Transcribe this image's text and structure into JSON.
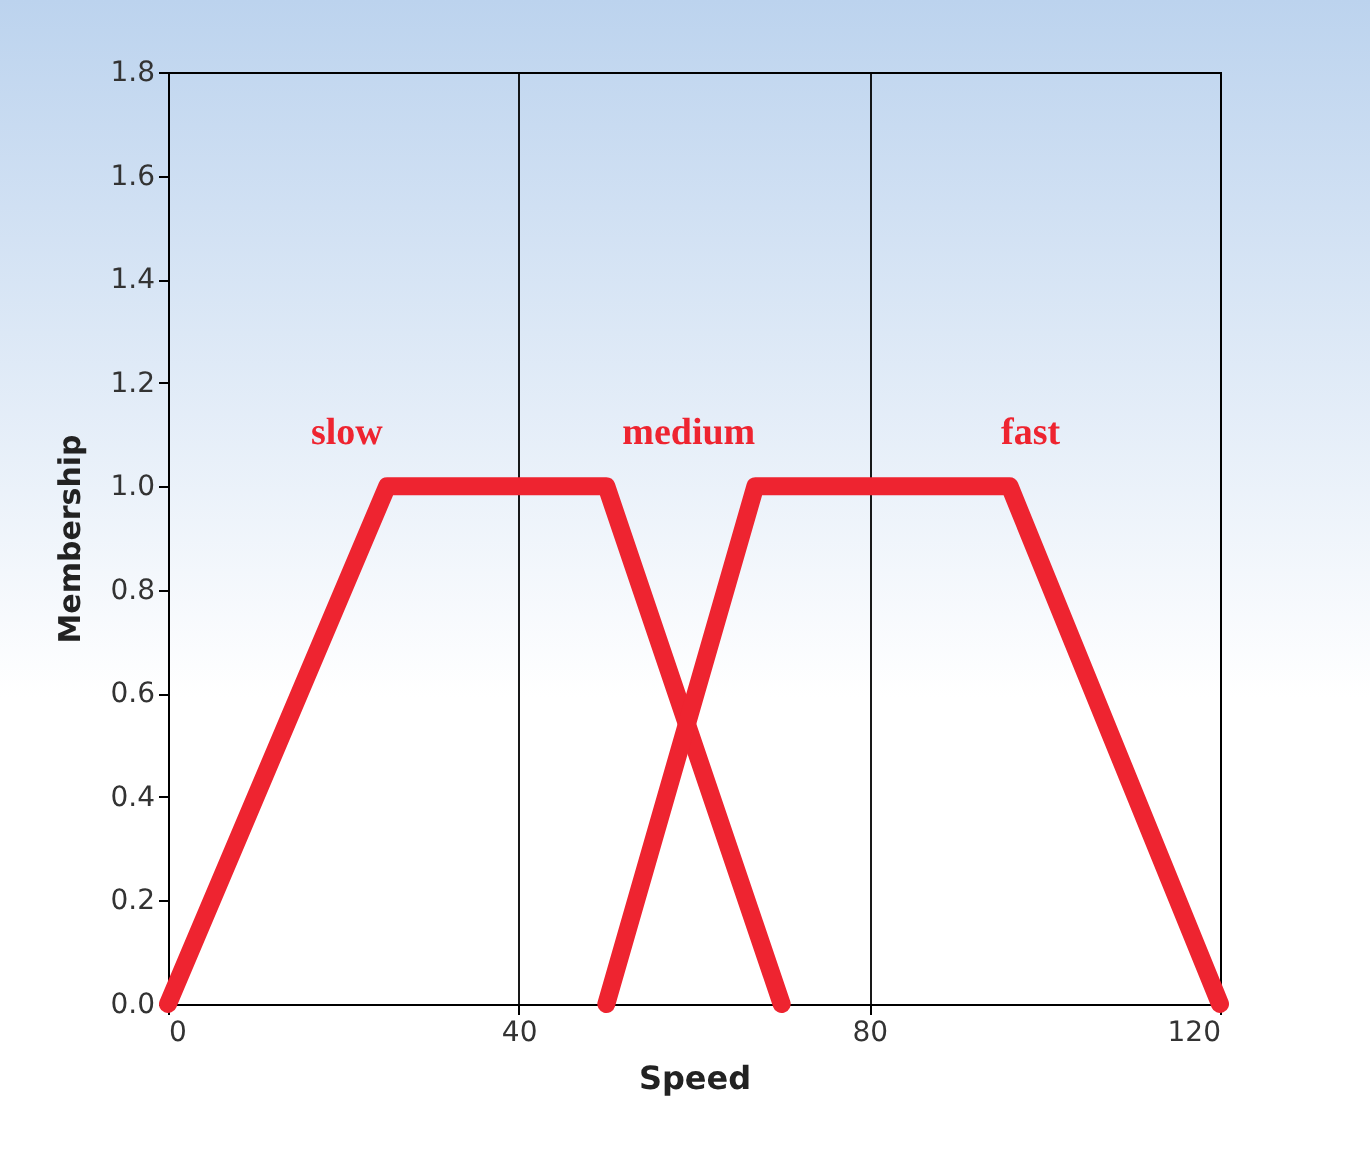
{
  "chart_data": {
    "type": "line",
    "xlabel": "Speed",
    "ylabel": "Membership",
    "xlim": [
      0,
      120
    ],
    "xticks": [
      0,
      40,
      80,
      120
    ],
    "ylim": [
      0,
      1.8
    ],
    "yticks": [
      {
        "value": 0,
        "label": "0.0"
      },
      0.2,
      0.4,
      0.6,
      0.8,
      {
        "value": 1,
        "label": "1.0"
      },
      1.2,
      1.4,
      1.6,
      1.8
    ],
    "grid": "x",
    "line_style": "solid",
    "series": [
      {
        "color": "#ee2430",
        "x": [
          0,
          25,
          50,
          70
        ],
        "values": [
          0,
          1,
          1,
          0
        ]
      },
      {
        "color": "#ee2430",
        "x": [
          50,
          67,
          96,
          120
        ],
        "values": [
          0,
          1,
          1,
          0
        ]
      }
    ],
    "annotations": [
      "slow",
      "medium",
      "fast"
    ]
  }
}
